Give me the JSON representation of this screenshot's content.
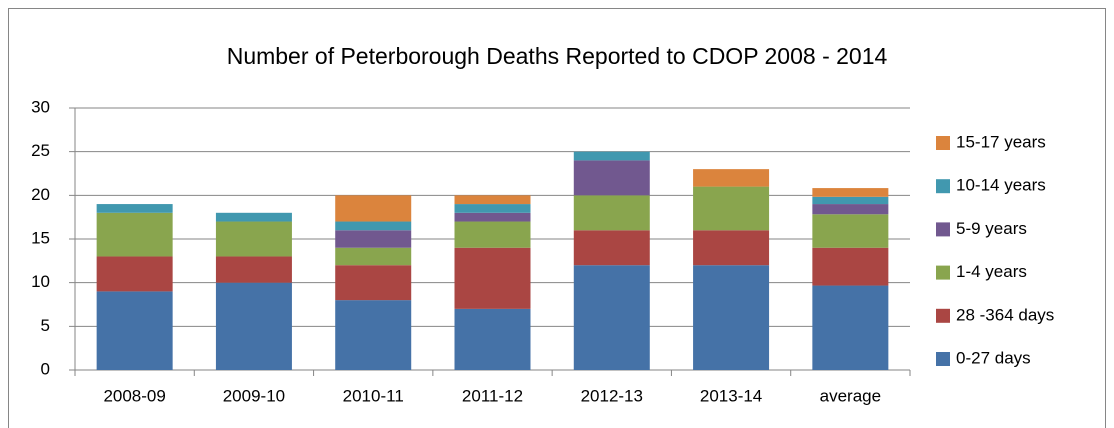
{
  "chart_data": {
    "type": "stacked_bar",
    "title": "Number of Peterborough Deaths Reported to CDOP 2008 - 2014",
    "categories": [
      "2008-09",
      "2009-10",
      "2010-11",
      "2011-12",
      "2012-13",
      "2013-14",
      "average"
    ],
    "series": [
      {
        "name": "0-27 days",
        "color": "#4572a7",
        "values": [
          9,
          10,
          8,
          7,
          12,
          12,
          9.67
        ]
      },
      {
        "name": "28 -364 days",
        "color": "#aa4643",
        "values": [
          4,
          3,
          4,
          7,
          4,
          4,
          4.33
        ]
      },
      {
        "name": "1-4 years",
        "color": "#89a54e",
        "values": [
          5,
          4,
          2,
          3,
          4,
          5,
          3.83
        ]
      },
      {
        "name": "5-9 years",
        "color": "#71588f",
        "values": [
          0,
          0,
          2,
          1,
          4,
          0,
          1.17
        ]
      },
      {
        "name": "10-14 years",
        "color": "#4198af",
        "values": [
          1,
          1,
          1,
          1,
          1,
          0,
          0.83
        ]
      },
      {
        "name": "15-17 years",
        "color": "#db843d",
        "values": [
          0,
          0,
          3,
          1,
          0,
          2,
          1
        ]
      }
    ],
    "ylim": [
      0,
      30
    ],
    "yticks": [
      0,
      5,
      10,
      15,
      20,
      25,
      30
    ],
    "grid": true,
    "legend": "right"
  }
}
